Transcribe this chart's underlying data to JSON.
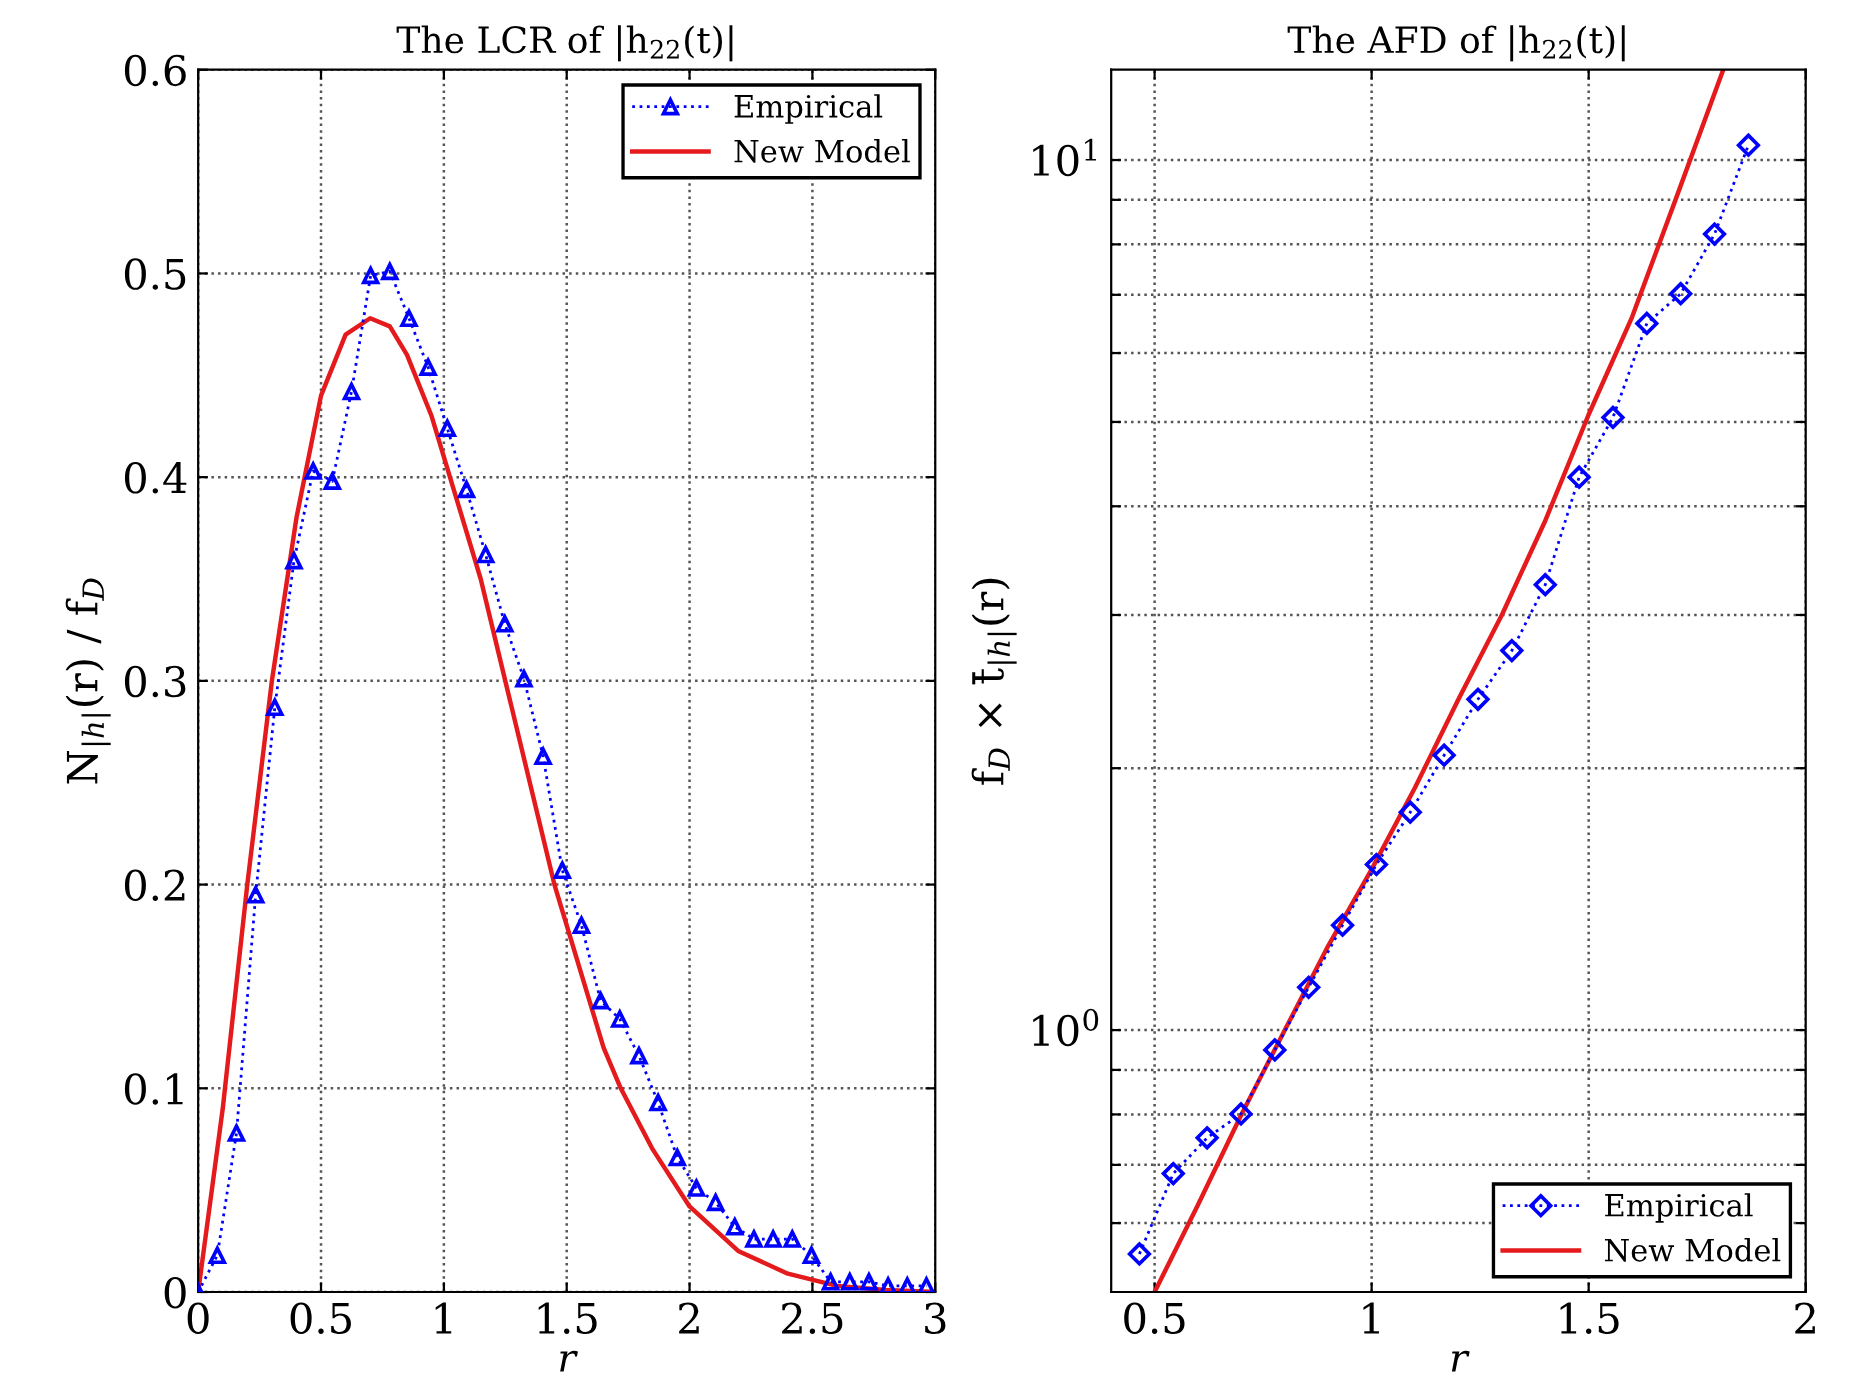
{
  "chart_data": [
    {
      "type": "line",
      "title": "The LCR of |h$_{22}$(t)|",
      "xlabel": "r",
      "ylabel": "N$_{|h|}$(r) / f$_{D}$",
      "xlim": [
        0,
        3
      ],
      "ylim": [
        0,
        0.6
      ],
      "xticks": [
        0,
        0.5,
        1,
        1.5,
        2,
        2.5,
        3
      ],
      "yticks": [
        0,
        0.1,
        0.2,
        0.3,
        0.4,
        0.5,
        0.6
      ],
      "grid": true,
      "legend": "top right",
      "series": [
        {
          "name": "Empirical",
          "color": "#0000ff",
          "marker": "triangle",
          "line_style": "dotted",
          "x": [
            0,
            0.078,
            0.156,
            0.234,
            0.312,
            0.39,
            0.468,
            0.546,
            0.624,
            0.702,
            0.78,
            0.858,
            0.936,
            1.014,
            1.092,
            1.17,
            1.248,
            1.326,
            1.404,
            1.482,
            1.56,
            1.638,
            1.716,
            1.794,
            1.872,
            1.95,
            2.028,
            2.106,
            2.184,
            2.262,
            2.34,
            2.418,
            2.496,
            2.574,
            2.652,
            2.73,
            2.808,
            2.886,
            2.964
          ],
          "values": [
            0,
            0.018,
            0.078,
            0.195,
            0.287,
            0.359,
            0.403,
            0.398,
            0.442,
            0.499,
            0.501,
            0.478,
            0.454,
            0.424,
            0.394,
            0.362,
            0.328,
            0.301,
            0.263,
            0.207,
            0.18,
            0.143,
            0.134,
            0.116,
            0.093,
            0.066,
            0.051,
            0.044,
            0.032,
            0.026,
            0.026,
            0.026,
            0.018,
            0.005,
            0.005,
            0.005,
            0.003,
            0.003,
            0.003
          ]
        },
        {
          "name": "New Model",
          "color": "#e41a1c",
          "marker": "none",
          "line_style": "solid",
          "x": [
            0,
            0.1,
            0.2,
            0.3,
            0.4,
            0.5,
            0.6,
            0.7,
            0.78,
            0.85,
            0.95,
            1.05,
            1.15,
            1.25,
            1.35,
            1.45,
            1.55,
            1.65,
            1.72,
            1.85,
            2.0,
            2.2,
            2.4,
            2.6,
            2.8,
            3.0
          ],
          "values": [
            0,
            0.09,
            0.2,
            0.3,
            0.38,
            0.44,
            0.47,
            0.478,
            0.474,
            0.46,
            0.43,
            0.39,
            0.35,
            0.3,
            0.25,
            0.2,
            0.16,
            0.12,
            0.1,
            0.07,
            0.042,
            0.02,
            0.009,
            0.003,
            0.001,
            0
          ]
        }
      ]
    },
    {
      "type": "line",
      "title": "The AFD of |h$_{22}$(t)|",
      "xlabel": "r",
      "ylabel": "f$_{D}$ × t̄$_{|h|}$(r)",
      "log": "y",
      "xlim": [
        0.4,
        2
      ],
      "ylim": [
        0.5,
        12.7
      ],
      "xticks": [
        0.5,
        1,
        1.5,
        2
      ],
      "yticks": [
        {
          "value": 0.6,
          "label": null
        },
        {
          "value": 0.7,
          "label": null
        },
        {
          "value": 0.8,
          "label": null
        },
        {
          "value": 0.9,
          "label": null
        },
        {
          "value": 1,
          "label": "10$^{0}$"
        },
        {
          "value": 2,
          "label": null
        },
        {
          "value": 3,
          "label": null
        },
        {
          "value": 4,
          "label": null
        },
        {
          "value": 5,
          "label": null
        },
        {
          "value": 6,
          "label": null
        },
        {
          "value": 7,
          "label": null
        },
        {
          "value": 8,
          "label": null
        },
        {
          "value": 9,
          "label": null
        },
        {
          "value": 10,
          "label": "10$^{1}$"
        }
      ],
      "grid": true,
      "legend": "bottom right",
      "series": [
        {
          "name": "Empirical",
          "color": "#0000ff",
          "marker": "diamond",
          "line_style": "dotted",
          "x": [
            0.465,
            0.543,
            0.621,
            0.699,
            0.777,
            0.855,
            0.933,
            1.011,
            1.089,
            1.167,
            1.245,
            1.323,
            1.4,
            1.478,
            1.556,
            1.634,
            1.712,
            1.79,
            1.868
          ],
          "values": [
            0.553,
            0.684,
            0.752,
            0.801,
            0.949,
            1.12,
            1.32,
            1.55,
            1.78,
            2.07,
            2.4,
            2.73,
            3.25,
            4.32,
            5.06,
            6.49,
            7.02,
            8.22,
            10.4
          ]
        },
        {
          "name": "New Model",
          "color": "#e41a1c",
          "marker": "none",
          "line_style": "solid",
          "x": [
            0.5,
            0.6,
            0.7,
            0.8,
            0.9,
            1.0,
            1.1,
            1.2,
            1.3,
            1.4,
            1.5,
            1.6,
            1.7,
            1.81
          ],
          "values": [
            0.5,
            0.63,
            0.8,
            1.0,
            1.25,
            1.53,
            1.9,
            2.4,
            3.0,
            3.85,
            5.1,
            6.6,
            9.0,
            12.7
          ]
        }
      ]
    }
  ]
}
